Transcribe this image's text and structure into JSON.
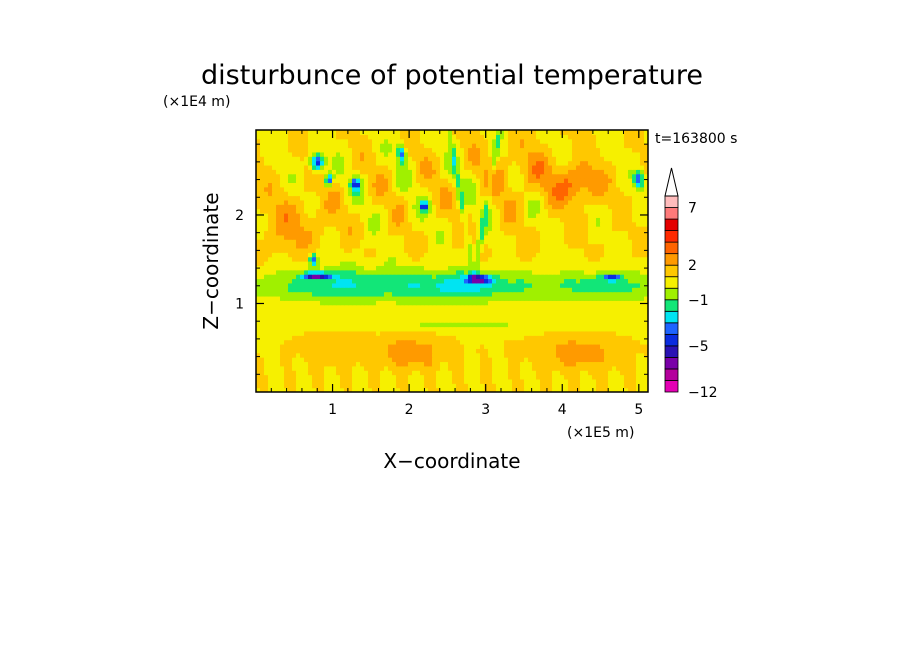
{
  "chart_data": {
    "type": "heatmap",
    "title": "disturbunce of potential temperature",
    "xlabel": "X−coordinate",
    "ylabel": "Z−coordinate",
    "x_unit": "(×1E5 m)",
    "y_unit": "(×1E4 m)",
    "time_label": "t=163800 s",
    "xlim": [
      0,
      5.12
    ],
    "ylim": [
      0,
      2.96
    ],
    "x_ticks": [
      "1",
      "2",
      "3",
      "4",
      "5"
    ],
    "y_ticks": [
      "1",
      "2"
    ],
    "x_tick_values": [
      1,
      2,
      3,
      4,
      5
    ],
    "y_tick_values": [
      1,
      2
    ],
    "colorbar": {
      "levels": [
        -12,
        -10,
        -8,
        -6,
        -5,
        -4,
        -3,
        -2,
        -1,
        0,
        1,
        2,
        3,
        4,
        5,
        6,
        7,
        8,
        9,
        10,
        11
      ],
      "colors": [
        "#e400b4",
        "#b4009c",
        "#7a00a8",
        "#2a12b4",
        "#0a2ce0",
        "#1e64ff",
        "#00e4f2",
        "#12e678",
        "#a0f000",
        "#f6f000",
        "#ffc800",
        "#ff9a00",
        "#ff6400",
        "#ff2a00",
        "#e40000",
        "#ff7a7a",
        "#ffbcbc"
      ],
      "tick_labels": [
        "−12",
        "−5",
        "−1",
        "2",
        "7"
      ],
      "tick_values": [
        -12,
        -5,
        -1,
        2,
        7
      ],
      "extend": "max"
    },
    "features": [
      {
        "x": 0.8,
        "z": 2.6,
        "value": -5
      },
      {
        "x": 0.95,
        "z": 2.4,
        "value": -5
      },
      {
        "x": 1.3,
        "z": 2.35,
        "value": -5
      },
      {
        "x": 1.9,
        "z": 2.7,
        "value": -5
      },
      {
        "x": 2.2,
        "z": 2.1,
        "value": -5
      },
      {
        "x": 2.9,
        "z": 1.3,
        "value": -5
      },
      {
        "x": 0.8,
        "z": 1.35,
        "value": -5
      },
      {
        "x": 4.2,
        "z": 2.35,
        "value": 4
      },
      {
        "x": 2.0,
        "z": 0.45,
        "value": 3
      },
      {
        "x": 4.2,
        "z": 0.45,
        "value": 3
      },
      {
        "x": 2.9,
        "z": 1.2,
        "value": -1
      },
      {
        "x": 4.5,
        "z": 1.2,
        "value": -1
      },
      {
        "x": 1.5,
        "z": 1.25,
        "value": -1
      }
    ]
  }
}
